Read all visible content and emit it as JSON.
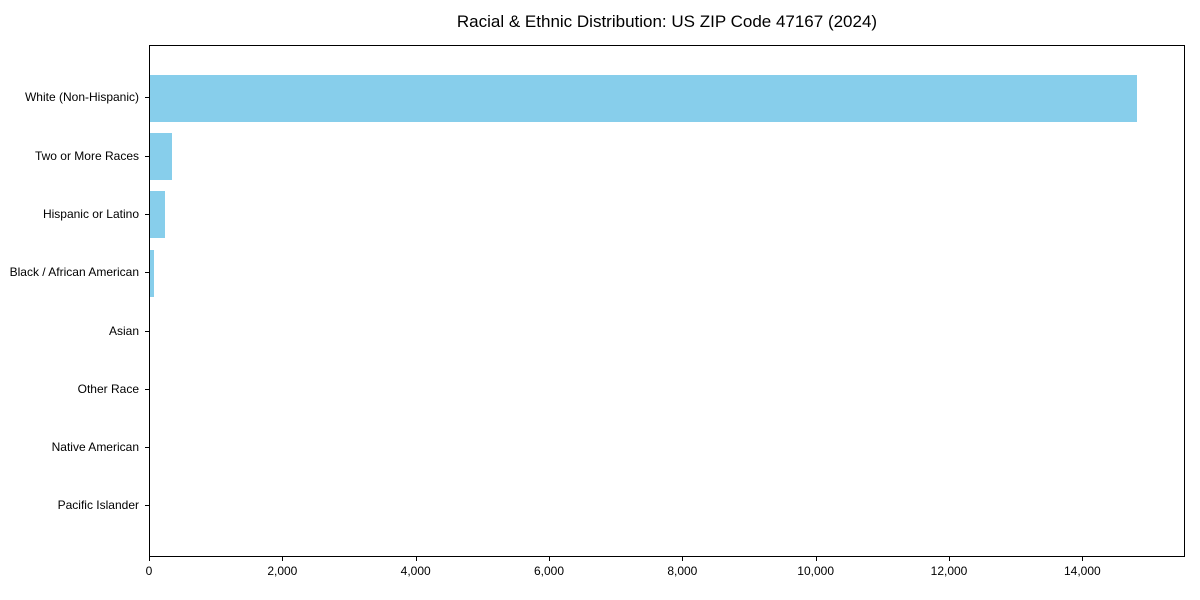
{
  "figure": {
    "background": "#ffffff"
  },
  "chart_data": {
    "type": "bar",
    "orientation": "horizontal",
    "title": "Racial & Ethnic Distribution: US ZIP Code 47167 (2024)",
    "categories": [
      "White (Non-Hispanic)",
      "Two or More Races",
      "Hispanic or Latino",
      "Black / African American",
      "Asian",
      "Other Race",
      "Native American",
      "Pacific Islander"
    ],
    "values": [
      14800,
      330,
      230,
      60,
      0,
      0,
      0,
      0
    ],
    "bar_color": "#87CEEB",
    "axis_color": "#000000",
    "text_color": "#000000",
    "xlabel": "",
    "ylabel": "",
    "xlim": [
      0,
      15540
    ],
    "xticks": [
      0,
      2000,
      4000,
      6000,
      8000,
      10000,
      12000,
      14000
    ],
    "xtick_labels": [
      "0",
      "2,000",
      "4,000",
      "6,000",
      "8,000",
      "10,000",
      "12,000",
      "14,000"
    ],
    "grid": false,
    "legend": null
  }
}
